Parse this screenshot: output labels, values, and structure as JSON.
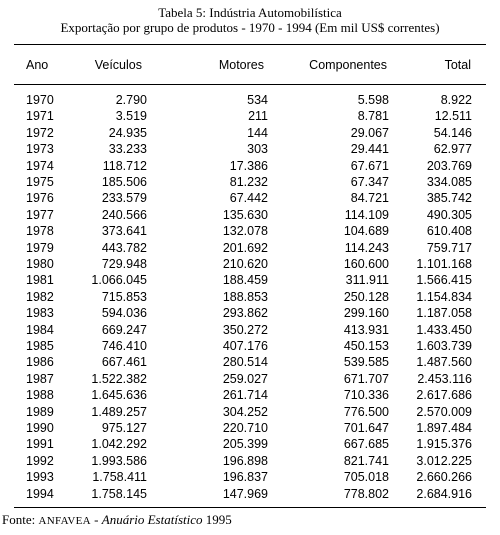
{
  "table": {
    "title": "Tabela 5: Indústria Automobilística",
    "subtitle": "Exportação por grupo de produtos - 1970 - 1994 (Em mil US$ correntes)",
    "headers": [
      "Ano",
      "Veículos",
      "Motores",
      "Componentes",
      "Total"
    ],
    "rows": [
      [
        "1970",
        "2.790",
        "534",
        "5.598",
        "8.922"
      ],
      [
        "1971",
        "3.519",
        "211",
        "8.781",
        "12.511"
      ],
      [
        "1972",
        "24.935",
        "144",
        "29.067",
        "54.146"
      ],
      [
        "1973",
        "33.233",
        "303",
        "29.441",
        "62.977"
      ],
      [
        "1974",
        "118.712",
        "17.386",
        "67.671",
        "203.769"
      ],
      [
        "1975",
        "185.506",
        "81.232",
        "67.347",
        "334.085"
      ],
      [
        "1976",
        "233.579",
        "67.442",
        "84.721",
        "385.742"
      ],
      [
        "1977",
        "240.566",
        "135.630",
        "114.109",
        "490.305"
      ],
      [
        "1978",
        "373.641",
        "132.078",
        "104.689",
        "610.408"
      ],
      [
        "1979",
        "443.782",
        "201.692",
        "114.243",
        "759.717"
      ],
      [
        "1980",
        "729.948",
        "210.620",
        "160.600",
        "1.101.168"
      ],
      [
        "1981",
        "1.066.045",
        "188.459",
        "311.911",
        "1.566.415"
      ],
      [
        "1982",
        "715.853",
        "188.853",
        "250.128",
        "1.154.834"
      ],
      [
        "1983",
        "594.036",
        "293.862",
        "299.160",
        "1.187.058"
      ],
      [
        "1984",
        "669.247",
        "350.272",
        "413.931",
        "1.433.450"
      ],
      [
        "1985",
        "746.410",
        "407.176",
        "450.153",
        "1.603.739"
      ],
      [
        "1986",
        "667.461",
        "280.514",
        "539.585",
        "1.487.560"
      ],
      [
        "1987",
        "1.522.382",
        "259.027",
        "671.707",
        "2.453.116"
      ],
      [
        "1988",
        "1.645.636",
        "261.714",
        "710.336",
        "2.617.686"
      ],
      [
        "1989",
        "1.489.257",
        "304.252",
        "776.500",
        "2.570.009"
      ],
      [
        "1990",
        "975.127",
        "220.710",
        "701.647",
        "1.897.484"
      ],
      [
        "1991",
        "1.042.292",
        "205.399",
        "667.685",
        "1.915.376"
      ],
      [
        "1992",
        "1.993.586",
        "196.898",
        "821.741",
        "3.012.225"
      ],
      [
        "1993",
        "1.758.411",
        "196.837",
        "705.018",
        "2.660.266"
      ],
      [
        "1994",
        "1.758.145",
        "147.969",
        "778.802",
        "2.684.916"
      ]
    ]
  },
  "source": {
    "prefix": "Fonte: ",
    "org": "ANFAVEA",
    "sep": " - ",
    "publication": "Anuário Estatístico",
    "year": " 1995"
  }
}
